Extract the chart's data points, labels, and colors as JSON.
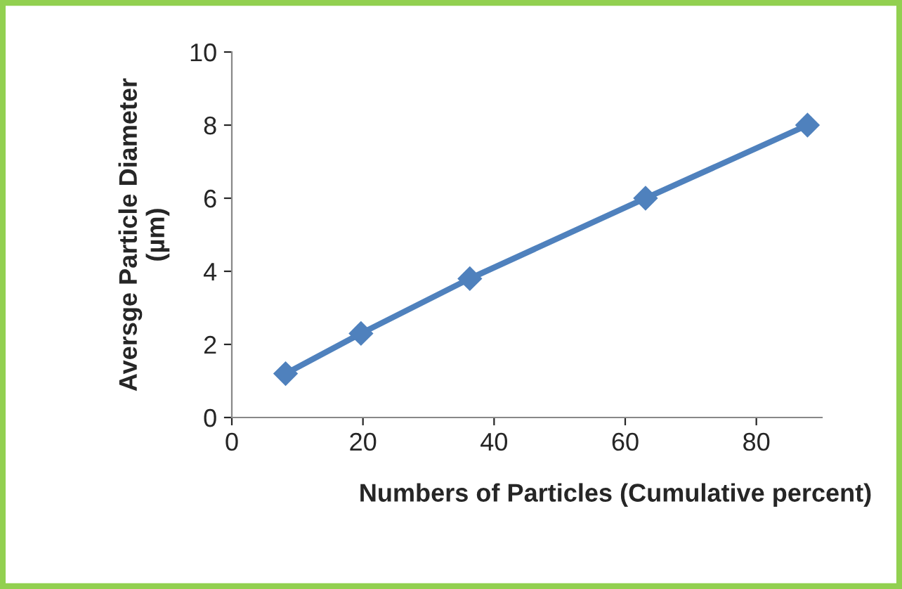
{
  "chart_data": {
    "type": "line",
    "xlabel": "Numbers of Particles (Cumulative percent)",
    "ylabel": "Aversge Particle Diameter\n(µm)",
    "x": [
      8.2,
      19.7,
      36.3,
      63.1,
      87.8
    ],
    "series": [
      {
        "color": "#4f81bd",
        "values": [
          1.2,
          2.3,
          3.8,
          6.0,
          8.0
        ]
      }
    ],
    "xlim": [
      0,
      90
    ],
    "xticks": [
      0,
      20,
      40,
      60,
      80
    ],
    "ylim": [
      0,
      10
    ],
    "yticks": [
      0,
      2,
      4,
      6,
      8,
      10
    ],
    "marker": "diamond",
    "line_style": "solid",
    "grid": false,
    "legend": false
  }
}
